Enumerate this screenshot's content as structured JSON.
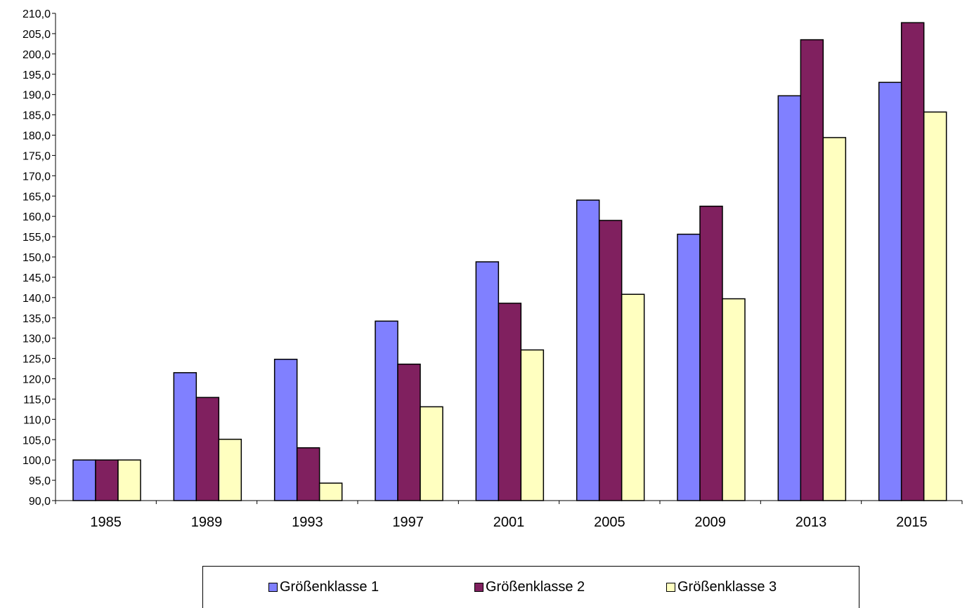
{
  "chart_data": {
    "type": "bar",
    "title": "",
    "xlabel": "",
    "ylabel": "",
    "categories": [
      "1985",
      "1989",
      "1993",
      "1997",
      "2001",
      "2005",
      "2009",
      "2013",
      "2015"
    ],
    "ylim": [
      90,
      210
    ],
    "ytick_step": 5,
    "ytick_labels": [
      "90,0",
      "95,0",
      "100,0",
      "105,0",
      "110,0",
      "115,0",
      "120,0",
      "125,0",
      "130,0",
      "135,0",
      "140,0",
      "145,0",
      "150,0",
      "155,0",
      "160,0",
      "165,0",
      "170,0",
      "175,0",
      "180,0",
      "185,0",
      "190,0",
      "195,0",
      "200,0",
      "205,0",
      "210,0"
    ],
    "grid": false,
    "legend_position": "bottom",
    "series": [
      {
        "name": "Größenklasse 1",
        "color": "#8080ff",
        "values": [
          100.0,
          121.5,
          124.8,
          134.2,
          148.8,
          164.0,
          155.6,
          189.7,
          193.0
        ]
      },
      {
        "name": "Größenklasse 2",
        "color": "#80205f",
        "values": [
          100.0,
          115.4,
          103.0,
          123.6,
          138.6,
          159.0,
          162.5,
          203.5,
          207.7
        ]
      },
      {
        "name": "Größenklasse 3",
        "color": "#ffffc0",
        "values": [
          100.0,
          105.1,
          94.3,
          113.1,
          127.1,
          140.8,
          139.7,
          179.4,
          185.7
        ]
      }
    ]
  }
}
